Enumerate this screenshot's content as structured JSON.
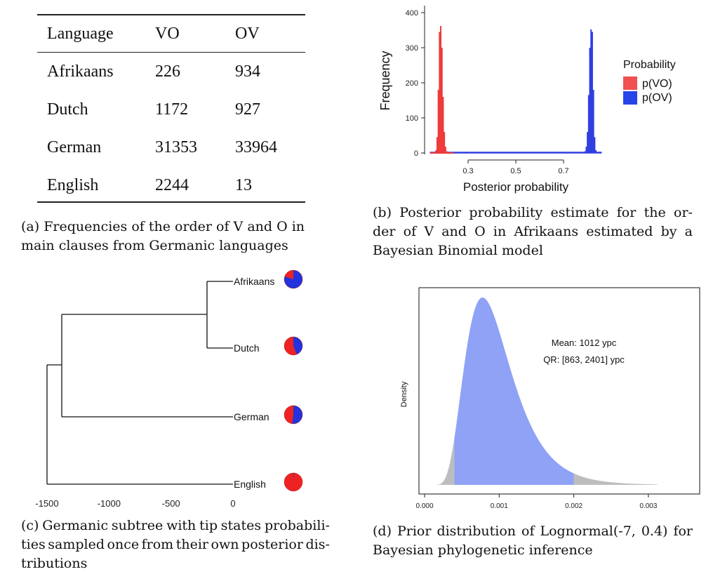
{
  "table_a": {
    "headers": [
      "Language",
      "VO",
      "OV"
    ],
    "rows": [
      [
        "Afrikaans",
        "226",
        "934"
      ],
      [
        "Dutch",
        "1172",
        "927"
      ],
      [
        "German",
        "31353",
        "33964"
      ],
      [
        "English",
        "2244",
        "13"
      ]
    ]
  },
  "captions": {
    "a": [
      "(a) Frequencies of the order of V and O in",
      "main clauses from Germanic languages"
    ],
    "b_line1_words": [
      "(b)",
      "Posterior",
      "probability",
      "estimate",
      "for",
      "the",
      "or-"
    ],
    "b_line2_words": [
      "der",
      "of",
      "V",
      "and",
      "O",
      "in",
      "Afrikaans",
      "estimated",
      "by",
      "a"
    ],
    "b_line3": "Bayesian Binomial model",
    "c_line1_words": [
      "(c)",
      "Germanic",
      "subtree",
      "with",
      "tip",
      "states",
      "probabili-"
    ],
    "c_line2_words": [
      "ties",
      "sampled",
      "once",
      "from",
      "their",
      "own",
      "posterior",
      "dis-"
    ],
    "c_line3": "tributions",
    "d_line1_words": [
      "(d)",
      "Prior",
      "distribution",
      "of",
      "Lognormal(-7,",
      "0.4)",
      "for"
    ],
    "d_line2": "Bayesian phylogenetic inference"
  },
  "chart_data": [
    {
      "type": "bar",
      "panel": "b",
      "xlabel": "Posterior probability",
      "ylabel": "Frequency",
      "xticks": [
        "0.3",
        "0.5",
        "0.7"
      ],
      "xtick_values": [
        0.3,
        0.5,
        0.7
      ],
      "yticks": [
        "0",
        "100",
        "200",
        "300",
        "400"
      ],
      "ytick_values": [
        0,
        100,
        200,
        300,
        400
      ],
      "xlim": [
        0.12,
        0.88
      ],
      "ylim": [
        0,
        410
      ],
      "legend_title": "Probability",
      "legend_position": "right",
      "series": [
        {
          "name": "p(VO)",
          "color": "#ee3a3a",
          "x": [
            0.165,
            0.17,
            0.175,
            0.18,
            0.185,
            0.19,
            0.195,
            0.2,
            0.205,
            0.21,
            0.215
          ],
          "values": [
            8,
            45,
            180,
            345,
            362,
            300,
            160,
            60,
            18,
            5,
            1
          ]
        },
        {
          "name": "p(OV)",
          "color": "#2f3fe0",
          "x": [
            0.785,
            0.79,
            0.795,
            0.8,
            0.805,
            0.81,
            0.815,
            0.82,
            0.825,
            0.83,
            0.835
          ],
          "values": [
            1,
            5,
            18,
            60,
            165,
            300,
            352,
            345,
            180,
            45,
            8
          ]
        }
      ]
    },
    {
      "type": "tree",
      "panel": "c",
      "xticks": [
        "-1500",
        "-1000",
        "-500",
        "0"
      ],
      "xtick_values": [
        -1500,
        -1000,
        -500,
        0
      ],
      "tips": [
        {
          "name": "Afrikaans",
          "p_OV": 0.8
        },
        {
          "name": "Dutch",
          "p_OV": 0.44
        },
        {
          "name": "German",
          "p_OV": 0.52
        },
        {
          "name": "English",
          "p_OV": 0.01
        }
      ],
      "colors": {
        "VO": "#ee2222",
        "OV": "#2233dd"
      }
    },
    {
      "type": "area",
      "panel": "d",
      "ylabel": "Density",
      "xticks": [
        "0.000",
        "0.001",
        "0.002",
        "0.003"
      ],
      "xtick_values": [
        0.0,
        0.001,
        0.002,
        0.003
      ],
      "xlim": [
        -0.00012,
        0.0032
      ],
      "distribution": {
        "family": "lognormal",
        "meanlog": -7,
        "sdlog": 0.4
      },
      "shaded_interval": [
        0.0004,
        0.002
      ],
      "fill_color": "#8fa2f5",
      "tail_color": "#bdbdbd",
      "annotations": [
        "Mean: 1012 ypc",
        "QR: [863, 2401] ypc"
      ]
    }
  ]
}
